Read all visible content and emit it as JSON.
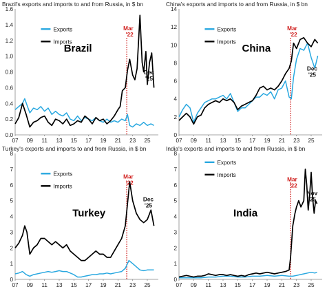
{
  "colors": {
    "exports": "#29a8e0",
    "imports": "#000000",
    "marker": "#d0201e"
  },
  "chart_data": [
    {
      "type": "line",
      "title": "Brazil's exports and imports to and from Russia, in $ bn",
      "country": "Brazil",
      "xlim": [
        2007,
        2026.5
      ],
      "ylim": [
        0,
        1.6
      ],
      "yticks": [
        "0.0",
        "0.2",
        "0.4",
        "0.6",
        "0.8",
        "1.0",
        "1.2",
        "1.4",
        "1.6"
      ],
      "ytick_values": [
        0,
        0.2,
        0.4,
        0.6,
        0.8,
        1.0,
        1.2,
        1.4,
        1.6
      ],
      "xticks": [
        "07",
        "09",
        "11",
        "13",
        "15",
        "17",
        "19",
        "21",
        "23",
        "25"
      ],
      "xtick_values": [
        2007,
        2009,
        2011,
        2013,
        2015,
        2017,
        2019,
        2021,
        2023,
        2025
      ],
      "legend": [
        "Exports",
        "Imports"
      ],
      "marker": {
        "line1": "Mar",
        "line2": "'22",
        "x": 2022.2
      },
      "end_label": {
        "line1": "Dec",
        "line2": "'25"
      },
      "series": [
        {
          "name": "Exports",
          "x": [
            2007,
            2007.5,
            2008,
            2008.3,
            2008.6,
            2009,
            2009.5,
            2010,
            2010.5,
            2011,
            2011.5,
            2012,
            2012.5,
            2013,
            2013.5,
            2014,
            2014.5,
            2015,
            2015.5,
            2016,
            2016.5,
            2017,
            2017.5,
            2018,
            2018.5,
            2019,
            2019.5,
            2020,
            2020.5,
            2021,
            2021.5,
            2022,
            2022.3,
            2022.6,
            2023,
            2023.5,
            2024,
            2024.5,
            2025,
            2025.5,
            2025.9
          ],
          "y": [
            0.32,
            0.36,
            0.4,
            0.46,
            0.38,
            0.28,
            0.34,
            0.32,
            0.36,
            0.3,
            0.34,
            0.26,
            0.3,
            0.26,
            0.24,
            0.28,
            0.2,
            0.18,
            0.24,
            0.18,
            0.22,
            0.2,
            0.18,
            0.22,
            0.18,
            0.16,
            0.2,
            0.16,
            0.18,
            0.16,
            0.2,
            0.18,
            0.26,
            0.12,
            0.1,
            0.14,
            0.12,
            0.16,
            0.12,
            0.14,
            0.12
          ]
        },
        {
          "name": "Imports",
          "x": [
            2007,
            2007.5,
            2008,
            2008.5,
            2009,
            2009.5,
            2010,
            2010.5,
            2011,
            2011.5,
            2012,
            2012.5,
            2013,
            2013.5,
            2014,
            2014.5,
            2015,
            2015.5,
            2016,
            2016.5,
            2017,
            2017.5,
            2018,
            2018.5,
            2019,
            2019.5,
            2020,
            2020.5,
            2021,
            2021.3,
            2021.6,
            2022,
            2022.3,
            2022.6,
            2023,
            2023.3,
            2023.6,
            2024,
            2024.3,
            2024.5,
            2024.8,
            2025,
            2025.3,
            2025.6,
            2025.9
          ],
          "y": [
            0.14,
            0.22,
            0.4,
            0.26,
            0.1,
            0.16,
            0.18,
            0.22,
            0.24,
            0.16,
            0.12,
            0.2,
            0.18,
            0.14,
            0.2,
            0.12,
            0.14,
            0.18,
            0.16,
            0.24,
            0.2,
            0.14,
            0.22,
            0.18,
            0.2,
            0.14,
            0.18,
            0.24,
            0.32,
            0.36,
            0.56,
            0.6,
            0.82,
            0.96,
            0.76,
            0.7,
            0.84,
            1.52,
            0.92,
            0.8,
            1.06,
            0.64,
            0.92,
            1.04,
            0.6
          ]
        }
      ]
    },
    {
      "type": "line",
      "title": "China's exports and imports to and from Russia, in $ bn",
      "country": "China",
      "xlim": [
        2007,
        2026.5
      ],
      "ylim": [
        0,
        14
      ],
      "yticks": [
        "0",
        "2",
        "4",
        "6",
        "8",
        "10",
        "12",
        "14"
      ],
      "ytick_values": [
        0,
        2,
        4,
        6,
        8,
        10,
        12,
        14
      ],
      "xticks": [
        "07",
        "09",
        "11",
        "13",
        "15",
        "17",
        "19",
        "21",
        "23",
        "25"
      ],
      "xtick_values": [
        2007,
        2009,
        2011,
        2013,
        2015,
        2017,
        2019,
        2021,
        2023,
        2025
      ],
      "legend": [
        "Exports",
        "Imports"
      ],
      "marker": {
        "line1": "Mar",
        "line2": "'22",
        "x": 2022.2
      },
      "end_label": {
        "line1": "Dec",
        "line2": "'25"
      },
      "series": [
        {
          "name": "Exports",
          "x": [
            2007,
            2007.5,
            2008,
            2008.5,
            2009,
            2009.5,
            2010,
            2010.5,
            2011,
            2011.5,
            2012,
            2012.5,
            2013,
            2013.5,
            2014,
            2014.5,
            2015,
            2015.5,
            2016,
            2016.5,
            2017,
            2017.5,
            2018,
            2018.5,
            2019,
            2019.5,
            2020,
            2020.5,
            2021,
            2021.5,
            2022,
            2022.3,
            2022.6,
            2023,
            2023.5,
            2024,
            2024.5,
            2025,
            2025.5,
            2025.9
          ],
          "y": [
            2.0,
            2.8,
            3.4,
            3.0,
            1.4,
            2.4,
            3.0,
            3.6,
            3.8,
            4.0,
            4.0,
            4.2,
            4.4,
            4.0,
            4.6,
            3.6,
            2.6,
            3.0,
            3.0,
            3.4,
            3.8,
            4.2,
            4.2,
            4.6,
            4.4,
            4.8,
            4.0,
            5.0,
            5.2,
            6.0,
            4.2,
            4.0,
            6.4,
            8.4,
            9.6,
            9.4,
            10.2,
            8.6,
            7.4,
            8.8
          ]
        },
        {
          "name": "Imports",
          "x": [
            2007,
            2007.5,
            2008,
            2008.5,
            2009,
            2009.5,
            2010,
            2010.5,
            2011,
            2011.5,
            2012,
            2012.5,
            2013,
            2013.5,
            2014,
            2014.5,
            2015,
            2015.5,
            2016,
            2016.5,
            2017,
            2017.5,
            2018,
            2018.5,
            2019,
            2019.5,
            2020,
            2020.5,
            2021,
            2021.5,
            2022,
            2022.3,
            2022.6,
            2023,
            2023.5,
            2024,
            2024.5,
            2025,
            2025.5,
            2025.9
          ],
          "y": [
            1.6,
            2.0,
            2.4,
            2.0,
            1.2,
            2.0,
            2.2,
            3.0,
            3.4,
            3.6,
            3.8,
            3.6,
            4.0,
            3.8,
            4.0,
            3.6,
            2.8,
            3.2,
            3.4,
            3.6,
            3.8,
            4.4,
            5.2,
            5.4,
            5.0,
            5.2,
            5.0,
            5.4,
            6.0,
            6.8,
            7.4,
            8.2,
            10.2,
            9.6,
            10.6,
            10.8,
            10.2,
            9.8,
            10.6,
            10.2
          ]
        }
      ]
    },
    {
      "type": "line",
      "title": "Turkey's exports and imports to and from Russia, in $ bn",
      "country": "Turkey",
      "xlim": [
        2007,
        2026.5
      ],
      "ylim": [
        0,
        8
      ],
      "yticks": [
        "0",
        "1",
        "2",
        "3",
        "4",
        "5",
        "6",
        "7",
        "8"
      ],
      "ytick_values": [
        0,
        1,
        2,
        3,
        4,
        5,
        6,
        7,
        8
      ],
      "xticks": [
        "07",
        "09",
        "11",
        "13",
        "15",
        "17",
        "19",
        "21",
        "23",
        "25"
      ],
      "xtick_values": [
        2007,
        2009,
        2011,
        2013,
        2015,
        2017,
        2019,
        2021,
        2023,
        2025
      ],
      "legend": [
        "Exports",
        "Imports"
      ],
      "marker": {
        "line1": "Mar",
        "line2": "'22",
        "x": 2022.2
      },
      "end_label": {
        "line1": "Dec",
        "line2": "'25"
      },
      "series": [
        {
          "name": "Exports",
          "x": [
            2007,
            2007.5,
            2008,
            2008.5,
            2009,
            2009.5,
            2010,
            2010.5,
            2011,
            2011.5,
            2012,
            2012.5,
            2013,
            2013.5,
            2014,
            2014.5,
            2015,
            2015.5,
            2016,
            2016.5,
            2017,
            2017.5,
            2018,
            2018.5,
            2019,
            2019.5,
            2020,
            2020.5,
            2021,
            2021.5,
            2022,
            2022.5,
            2023,
            2023.5,
            2024,
            2024.5,
            2025,
            2025.5,
            2025.9
          ],
          "y": [
            0.35,
            0.4,
            0.5,
            0.3,
            0.2,
            0.3,
            0.35,
            0.4,
            0.45,
            0.5,
            0.45,
            0.5,
            0.55,
            0.5,
            0.5,
            0.4,
            0.3,
            0.15,
            0.15,
            0.2,
            0.25,
            0.3,
            0.3,
            0.35,
            0.35,
            0.4,
            0.35,
            0.4,
            0.45,
            0.5,
            0.7,
            1.2,
            1.0,
            0.8,
            0.6,
            0.55,
            0.6,
            0.6,
            0.6
          ]
        },
        {
          "name": "Imports",
          "x": [
            2007,
            2007.5,
            2008,
            2008.3,
            2008.6,
            2009,
            2009.5,
            2010,
            2010.5,
            2011,
            2011.5,
            2012,
            2012.5,
            2013,
            2013.5,
            2014,
            2014.5,
            2015,
            2015.5,
            2016,
            2016.5,
            2017,
            2017.5,
            2018,
            2018.5,
            2019,
            2019.5,
            2020,
            2020.5,
            2021,
            2021.5,
            2022,
            2022.3,
            2022.6,
            2023,
            2023.5,
            2024,
            2024.5,
            2025,
            2025.5,
            2025.9
          ],
          "y": [
            2.0,
            2.3,
            2.8,
            3.4,
            3.0,
            1.6,
            2.0,
            2.2,
            2.6,
            2.6,
            2.4,
            2.2,
            2.4,
            2.2,
            2.0,
            2.2,
            1.8,
            1.6,
            1.4,
            1.2,
            1.2,
            1.4,
            1.6,
            1.8,
            1.6,
            1.6,
            1.4,
            1.4,
            1.8,
            2.2,
            2.6,
            3.4,
            4.8,
            6.2,
            5.0,
            4.2,
            3.8,
            3.6,
            3.8,
            4.4,
            3.4
          ]
        }
      ]
    },
    {
      "type": "line",
      "title": "India's exports and imports to and from Russia, in $ bn",
      "country": "India",
      "xlim": [
        2007,
        2026.5
      ],
      "ylim": [
        0,
        8
      ],
      "yticks": [
        "0",
        "1",
        "2",
        "3",
        "4",
        "5",
        "6",
        "7",
        "8"
      ],
      "ytick_values": [
        0,
        1,
        2,
        3,
        4,
        5,
        6,
        7,
        8
      ],
      "xticks": [
        "07",
        "09",
        "11",
        "13",
        "15",
        "17",
        "19",
        "21",
        "23",
        "25"
      ],
      "xtick_values": [
        2007,
        2009,
        2011,
        2013,
        2015,
        2017,
        2019,
        2021,
        2023,
        2025
      ],
      "legend": [
        "Exports",
        "Imports"
      ],
      "marker": {
        "line1": "Mar",
        "line2": "'22",
        "x": 2022.2
      },
      "end_label": {
        "line1": "Nov",
        "line2": "'25"
      },
      "series": [
        {
          "name": "Exports",
          "x": [
            2007,
            2008,
            2009,
            2010,
            2011,
            2012,
            2013,
            2014,
            2015,
            2016,
            2017,
            2018,
            2019,
            2020,
            2021,
            2022,
            2022.5,
            2023,
            2023.5,
            2024,
            2024.5,
            2025,
            2025.5,
            2025.8
          ],
          "y": [
            0.1,
            0.1,
            0.1,
            0.1,
            0.15,
            0.15,
            0.2,
            0.2,
            0.15,
            0.15,
            0.2,
            0.2,
            0.25,
            0.2,
            0.25,
            0.2,
            0.2,
            0.25,
            0.3,
            0.35,
            0.4,
            0.45,
            0.4,
            0.45
          ]
        },
        {
          "name": "Imports",
          "x": [
            2007,
            2007.5,
            2008,
            2008.5,
            2009,
            2009.5,
            2010,
            2010.5,
            2011,
            2011.5,
            2012,
            2012.5,
            2013,
            2013.5,
            2014,
            2014.5,
            2015,
            2015.5,
            2016,
            2016.5,
            2017,
            2017.5,
            2018,
            2018.5,
            2019,
            2019.5,
            2020,
            2020.5,
            2021,
            2021.5,
            2022,
            2022.2,
            2022.5,
            2022.8,
            2023,
            2023.3,
            2023.6,
            2024,
            2024.2,
            2024.4,
            2024.6,
            2024.8,
            2025,
            2025.2,
            2025.4,
            2025.6,
            2025.8
          ],
          "y": [
            0.15,
            0.2,
            0.25,
            0.2,
            0.15,
            0.2,
            0.2,
            0.25,
            0.35,
            0.3,
            0.25,
            0.3,
            0.3,
            0.25,
            0.3,
            0.25,
            0.2,
            0.25,
            0.2,
            0.3,
            0.35,
            0.4,
            0.35,
            0.4,
            0.45,
            0.4,
            0.35,
            0.4,
            0.45,
            0.5,
            0.6,
            1.4,
            3.4,
            4.2,
            4.6,
            5.0,
            4.6,
            5.0,
            7.0,
            6.0,
            4.4,
            5.4,
            6.8,
            5.2,
            4.2,
            5.0,
            4.8
          ]
        }
      ]
    }
  ]
}
